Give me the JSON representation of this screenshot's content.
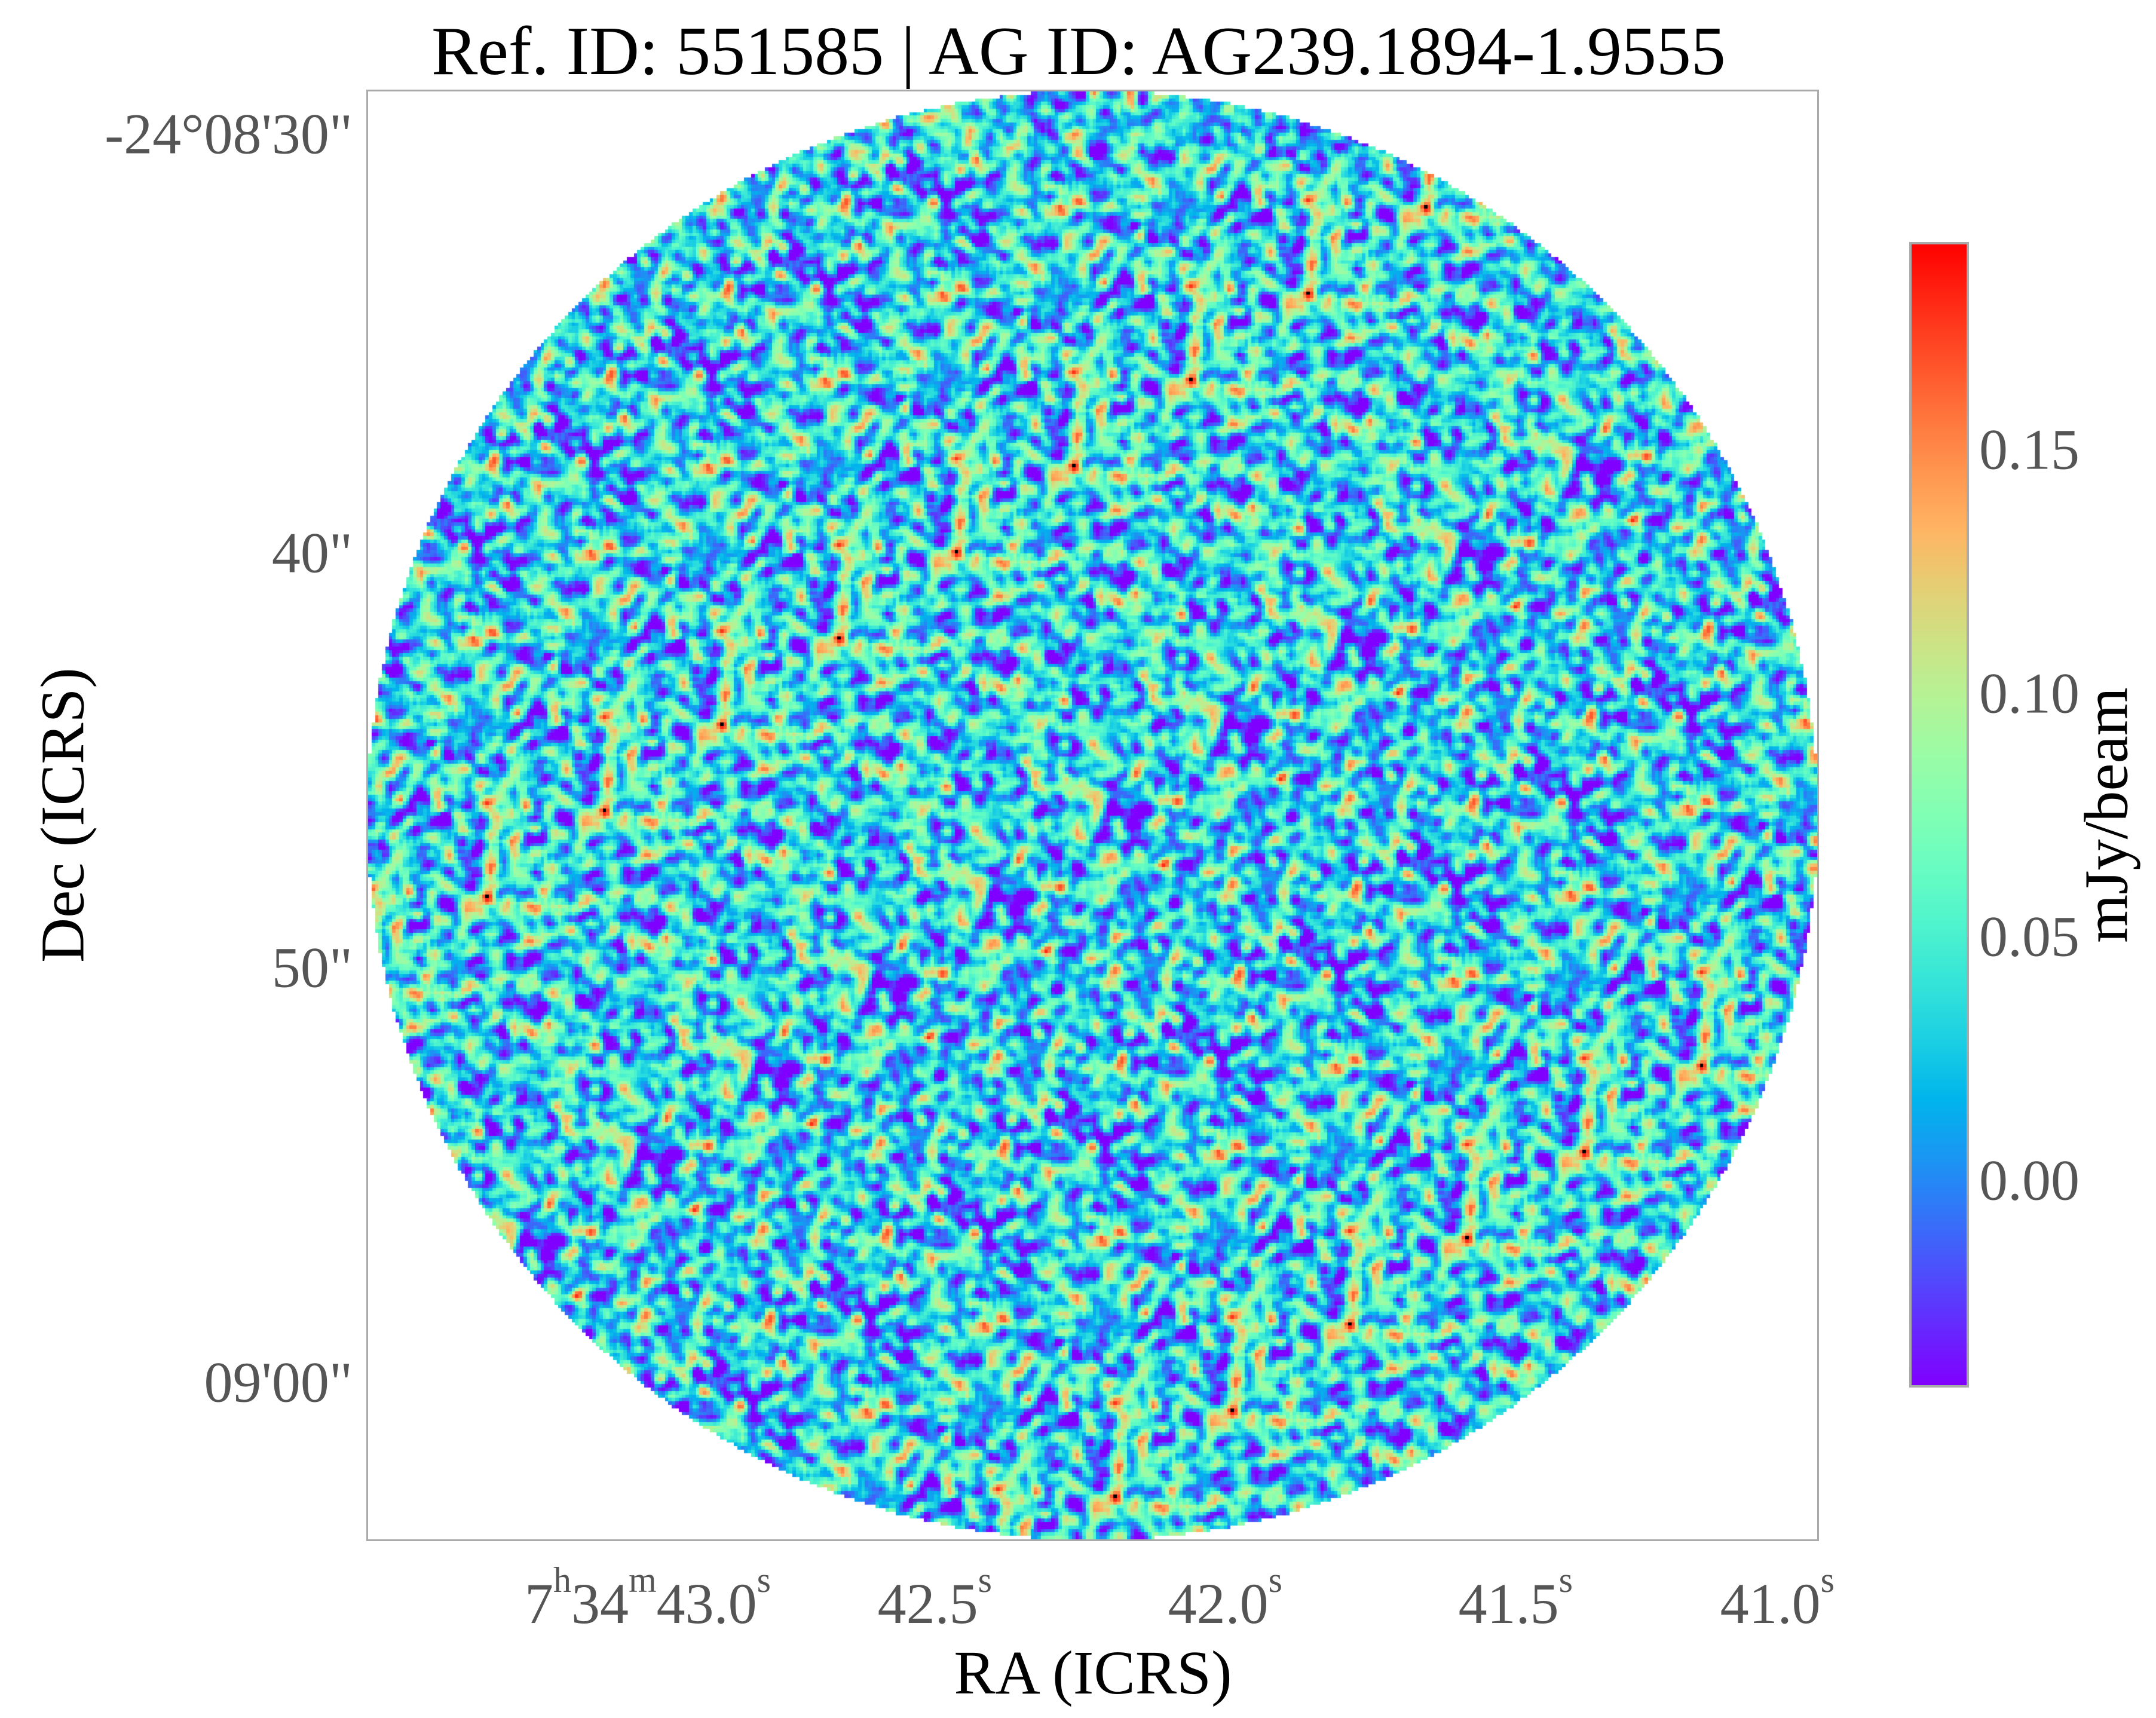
{
  "chart_data": {
    "type": "heatmap",
    "title": "Ref. ID: 551585 | AG ID: AG239.1894-1.9555",
    "xlabel": "RA (ICRS)",
    "ylabel": "Dec (ICRS)",
    "x_ticks": [
      {
        "main": "7",
        "sup1": "h",
        "mid": "34",
        "sup2": "m",
        "val": "43.0",
        "sup3": "s"
      },
      {
        "val": "42.5",
        "sup3": "s"
      },
      {
        "val": "42.0",
        "sup3": "s"
      },
      {
        "val": "41.5",
        "sup3": "s"
      },
      {
        "val": "41.0",
        "sup3": "s"
      }
    ],
    "y_ticks": [
      "-24°08'30\"",
      "40\"",
      "50\"",
      "09'00\""
    ],
    "colorbar": {
      "label": "mJy/beam",
      "colormap": "rainbow",
      "range": [
        -0.042,
        0.192
      ],
      "ticks": [
        "0.15",
        "0.10",
        "0.05",
        "0.00"
      ],
      "tick_values": [
        0.15,
        0.1,
        0.05,
        0.0
      ]
    },
    "image": {
      "footprint": "circle",
      "description_values": "noise field, mostly between -0.04 and 0.12 mJy/beam with sparse peaks near 0.19"
    },
    "grid": false
  }
}
